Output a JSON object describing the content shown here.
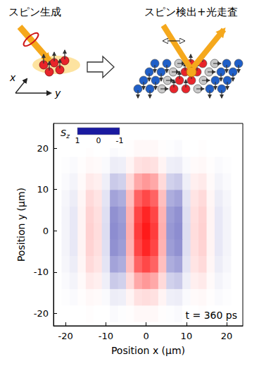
{
  "diagram": {
    "left_label": "スピン生成",
    "right_label": "スピン検出+光走査",
    "axis_labels": [
      "x",
      "y"
    ]
  },
  "chart_data": {
    "type": "heatmap",
    "x_label": "Position x (μm)",
    "y_label": "Position y (μm)",
    "annotation": "t = 360 ps",
    "xlim": [
      -23,
      24
    ],
    "ylim": [
      -23,
      26
    ],
    "xticks": [
      -20,
      -10,
      0,
      10,
      20
    ],
    "yticks": [
      -20,
      -10,
      0,
      10,
      20
    ],
    "grid": false,
    "colorbar": {
      "label": "Sz",
      "range": [
        -1,
        1
      ],
      "ticks": [
        1,
        0,
        -1
      ],
      "colors": [
        "#1a1aa0",
        "#ffffff",
        "#ff1a1a"
      ]
    },
    "x": [
      -20,
      -18,
      -16,
      -14,
      -12,
      -10,
      -8,
      -6,
      -4,
      -2,
      0,
      2,
      4,
      6,
      8,
      10,
      12,
      14,
      16,
      18,
      20
    ],
    "y": [
      -20,
      -16,
      -12,
      -8,
      -4,
      0,
      4,
      8,
      12,
      16,
      20
    ],
    "cells": [
      [
        0,
        0,
        0,
        0.01,
        0,
        0,
        -0.02,
        -0.01,
        0.01,
        0.03,
        0.03,
        0.03,
        0.01,
        -0.01,
        -0.02,
        0,
        0,
        0.01,
        0,
        0,
        0
      ],
      [
        -0.01,
        -0.02,
        0.01,
        0.03,
        0.02,
        -0.02,
        -0.08,
        -0.07,
        0.05,
        0.13,
        0.15,
        0.13,
        0.05,
        -0.07,
        -0.08,
        -0.02,
        0.02,
        0.03,
        0.01,
        -0.02,
        -0.01
      ],
      [
        -0.02,
        -0.05,
        0.02,
        0.09,
        0.07,
        -0.07,
        -0.23,
        -0.2,
        0.16,
        0.38,
        0.45,
        0.38,
        0.16,
        -0.2,
        -0.23,
        -0.07,
        0.07,
        0.09,
        0.02,
        -0.05,
        -0.02
      ],
      [
        -0.04,
        -0.08,
        0.04,
        0.16,
        0.12,
        -0.12,
        -0.4,
        -0.36,
        0.28,
        0.68,
        0.8,
        0.68,
        0.28,
        -0.36,
        -0.4,
        -0.12,
        0.12,
        0.16,
        0.04,
        -0.08,
        -0.04
      ],
      [
        -0.05,
        -0.1,
        0.05,
        0.19,
        0.14,
        -0.14,
        -0.48,
        -0.43,
        0.33,
        0.81,
        0.95,
        0.81,
        0.33,
        -0.43,
        -0.48,
        -0.14,
        0.14,
        0.19,
        0.05,
        -0.1,
        -0.05
      ],
      [
        -0.05,
        -0.1,
        0.05,
        0.2,
        0.15,
        -0.15,
        -0.5,
        -0.45,
        0.35,
        0.85,
        1.0,
        0.85,
        0.35,
        -0.45,
        -0.5,
        -0.15,
        0.15,
        0.2,
        0.05,
        -0.1,
        -0.05
      ],
      [
        -0.05,
        -0.1,
        0.05,
        0.19,
        0.14,
        -0.14,
        -0.48,
        -0.43,
        0.33,
        0.81,
        0.95,
        0.81,
        0.33,
        -0.43,
        -0.48,
        -0.14,
        0.14,
        0.19,
        0.05,
        -0.1,
        -0.05
      ],
      [
        -0.04,
        -0.08,
        0.04,
        0.16,
        0.12,
        -0.12,
        -0.4,
        -0.36,
        0.28,
        0.68,
        0.8,
        0.68,
        0.28,
        -0.36,
        -0.4,
        -0.12,
        0.12,
        0.16,
        0.04,
        -0.08,
        -0.04
      ],
      [
        -0.02,
        -0.05,
        0.02,
        0.09,
        0.07,
        -0.07,
        -0.23,
        -0.2,
        0.16,
        0.38,
        0.45,
        0.38,
        0.16,
        -0.2,
        -0.23,
        -0.07,
        0.07,
        0.09,
        0.02,
        -0.05,
        -0.02
      ],
      [
        -0.01,
        -0.02,
        0.01,
        0.03,
        0.02,
        -0.02,
        -0.08,
        -0.07,
        0.05,
        0.13,
        0.15,
        0.13,
        0.05,
        -0.07,
        -0.08,
        -0.02,
        0.02,
        0.03,
        0.01,
        -0.02,
        -0.01
      ],
      [
        0,
        0,
        0,
        0.01,
        0,
        0,
        -0.02,
        -0.01,
        0.01,
        0.03,
        0.03,
        0.03,
        0.01,
        -0.01,
        -0.02,
        0,
        0,
        0.01,
        0,
        0,
        0
      ]
    ]
  }
}
